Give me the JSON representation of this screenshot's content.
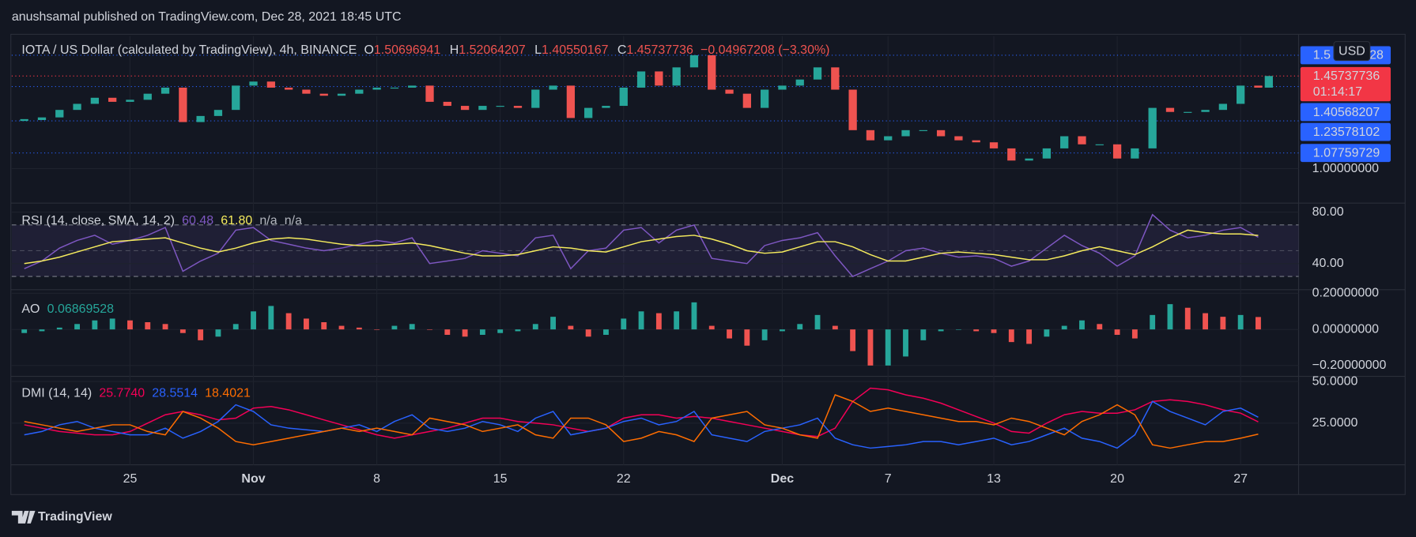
{
  "header": {
    "published": "anushsamal published on TradingView.com, Dec 28, 2021 18:45 UTC"
  },
  "footer": {
    "logo": "TradingView"
  },
  "chart_data": [
    {
      "type": "candlestick",
      "title": "IOTA / US Dollar (calculated by TradingView), 4h, BINANCE",
      "ohlc": [
        {
          "label": "O",
          "value": "1.50696941"
        },
        {
          "label": "H",
          "value": "1.52064207"
        },
        {
          "label": "L",
          "value": "1.40550167"
        },
        {
          "label": "C",
          "value": "1.45737736"
        }
      ],
      "change": "−0.04967208 (−3.30%)",
      "currency": "USD",
      "up_color": "#26a69a",
      "down_color": "#ef5350",
      "x": [
        -6,
        -5,
        -4,
        -3,
        -2,
        -1,
        0,
        1,
        2,
        3,
        4,
        5,
        6,
        7,
        8,
        9,
        10,
        11,
        12,
        13,
        14,
        15,
        16,
        17,
        18,
        19,
        20,
        21,
        22,
        23,
        24,
        25,
        26,
        27,
        28,
        29,
        30,
        31,
        32,
        33,
        34,
        35,
        36,
        37,
        38,
        39,
        40,
        41,
        42,
        43,
        44,
        45,
        46,
        47,
        48,
        49,
        50,
        51,
        52,
        53,
        54,
        55,
        56,
        57,
        58,
        59,
        60,
        61,
        62,
        63,
        64,
        64.6
      ],
      "values": [
        1.24,
        1.253,
        1.29,
        1.32,
        1.35,
        1.33,
        1.34,
        1.37,
        1.4,
        1.23,
        1.26,
        1.29,
        1.41,
        1.43,
        1.4,
        1.39,
        1.37,
        1.36,
        1.37,
        1.39,
        1.4,
        1.4,
        1.41,
        1.33,
        1.31,
        1.29,
        1.31,
        1.31,
        1.3,
        1.39,
        1.41,
        1.25,
        1.3,
        1.31,
        1.4,
        1.48,
        1.41,
        1.5,
        1.56,
        1.39,
        1.37,
        1.3,
        1.39,
        1.41,
        1.44,
        1.5,
        1.39,
        1.19,
        1.14,
        1.16,
        1.19,
        1.19,
        1.16,
        1.14,
        1.13,
        1.1,
        1.04,
        1.05,
        1.1,
        1.16,
        1.12,
        1.12,
        1.05,
        1.1,
        1.3,
        1.28,
        1.28,
        1.29,
        1.32,
        1.41,
        1.4,
        1.45737736
      ],
      "xlim": [
        -6.71,
        66.29
      ],
      "xticks": [
        {
          "value": 0,
          "label": "25"
        },
        {
          "value": 7,
          "label": "Nov"
        },
        {
          "value": 14,
          "label": "8"
        },
        {
          "value": 21,
          "label": "15"
        },
        {
          "value": 28,
          "label": "22"
        },
        {
          "value": 37,
          "label": "Dec"
        },
        {
          "value": 43,
          "label": "7"
        },
        {
          "value": 49,
          "label": "13"
        },
        {
          "value": 56,
          "label": "20"
        },
        {
          "value": 63,
          "label": "27"
        }
      ],
      "ylim": [
        0.83,
        1.65
      ],
      "yticks": [
        {
          "value": 1,
          "label": "1.00000000"
        }
      ],
      "price_levels": [
        {
          "value": 1.56,
          "label": "1.5",
          "label_end": "28",
          "color": "#2962ff"
        },
        {
          "value": 1.45737736,
          "countdown": "01:14:17",
          "color": "#f23645"
        },
        {
          "value": 1.40568207,
          "color": "#2962ff"
        },
        {
          "value": 1.23578102,
          "color": "#2962ff"
        },
        {
          "value": 1.07759729,
          "color": "#2962ff"
        }
      ]
    },
    {
      "type": "line",
      "title": "RSI (14, close, SMA, 14, 2)",
      "legend_values": [
        "60.48",
        "61.80",
        "n/a",
        "n/a"
      ],
      "x": [
        -6,
        -5,
        -4,
        -3,
        -2,
        -1,
        0,
        1,
        2,
        3,
        4,
        5,
        6,
        7,
        8,
        9,
        10,
        11,
        12,
        13,
        14,
        15,
        16,
        17,
        18,
        19,
        20,
        21,
        22,
        23,
        24,
        25,
        26,
        27,
        28,
        29,
        30,
        31,
        32,
        33,
        34,
        35,
        36,
        37,
        38,
        39,
        40,
        41,
        42,
        43,
        44,
        45,
        46,
        47,
        48,
        49,
        50,
        51,
        52,
        53,
        54,
        55,
        56,
        57,
        58,
        59,
        60,
        61,
        62,
        63,
        64
      ],
      "series": [
        {
          "color": "#7e57c2",
          "values": [
            36,
            42,
            52,
            58,
            62,
            55,
            58,
            62,
            68,
            34,
            42,
            48,
            66,
            68,
            58,
            55,
            52,
            50,
            52,
            55,
            58,
            56,
            60,
            40,
            42,
            44,
            50,
            48,
            46,
            60,
            62,
            36,
            50,
            52,
            66,
            68,
            56,
            66,
            70,
            44,
            42,
            40,
            54,
            58,
            60,
            64,
            46,
            30,
            36,
            42,
            50,
            52,
            48,
            45,
            46,
            44,
            38,
            42,
            52,
            62,
            54,
            48,
            38,
            46,
            78,
            66,
            60,
            62,
            66,
            68,
            60.48
          ]
        },
        {
          "color": "#f5eb5d",
          "values": [
            40,
            42,
            45,
            49,
            53,
            57,
            58,
            59,
            60,
            56,
            52,
            49,
            52,
            56,
            59,
            60,
            59,
            57,
            55,
            54,
            54,
            55,
            56,
            54,
            51,
            48,
            46,
            46,
            47,
            50,
            53,
            52,
            50,
            49,
            53,
            57,
            59,
            61,
            62,
            59,
            55,
            50,
            48,
            49,
            53,
            57,
            57,
            53,
            47,
            42,
            42,
            45,
            48,
            49,
            48,
            47,
            45,
            43,
            43,
            46,
            50,
            53,
            50,
            47,
            53,
            60,
            66,
            64,
            63,
            63,
            61.8
          ]
        }
      ],
      "ylim": [
        20.4,
        84.9
      ],
      "yticks": [
        {
          "value": 40,
          "label": "40.00"
        },
        {
          "value": 80,
          "label": "80.00"
        }
      ],
      "band": [
        30,
        70
      ],
      "midline": 50
    },
    {
      "type": "histogram",
      "title": "AO",
      "legend_values": [
        "0.06869528"
      ],
      "up_color": "#26a69a",
      "down_color": "#ef5350",
      "x": [
        -6,
        -5,
        -4,
        -3,
        -2,
        -1,
        0,
        1,
        2,
        3,
        4,
        5,
        6,
        7,
        8,
        9,
        10,
        11,
        12,
        13,
        14,
        15,
        16,
        17,
        18,
        19,
        20,
        21,
        22,
        23,
        24,
        25,
        26,
        27,
        28,
        29,
        30,
        31,
        32,
        33,
        34,
        35,
        36,
        37,
        38,
        39,
        40,
        41,
        42,
        43,
        44,
        45,
        46,
        47,
        48,
        49,
        50,
        51,
        52,
        53,
        54,
        55,
        56,
        57,
        58,
        59,
        60,
        61,
        62,
        63,
        64
      ],
      "values": [
        -0.02,
        -0.01,
        0.01,
        0.03,
        0.05,
        0.06,
        0.05,
        0.04,
        0.03,
        -0.02,
        -0.06,
        -0.04,
        0.03,
        0.1,
        0.13,
        0.09,
        0.06,
        0.04,
        0.02,
        0.01,
        0.0,
        0.02,
        0.03,
        0.0,
        -0.03,
        -0.04,
        -0.03,
        -0.02,
        -0.01,
        0.03,
        0.07,
        0.02,
        -0.04,
        -0.03,
        0.06,
        0.1,
        0.09,
        0.1,
        0.15,
        0.02,
        -0.05,
        -0.09,
        -0.06,
        -0.01,
        0.03,
        0.08,
        0.02,
        -0.12,
        -0.2,
        -0.2,
        -0.15,
        -0.06,
        -0.01,
        0.0,
        -0.01,
        -0.02,
        -0.07,
        -0.08,
        -0.04,
        0.02,
        0.05,
        0.03,
        -0.03,
        -0.05,
        0.08,
        0.14,
        0.12,
        0.09,
        0.07,
        0.08,
        0.06869528
      ],
      "ylim": [
        -0.25,
        0.21
      ],
      "yticks": [
        {
          "value": 0.2,
          "label": "0.20000000"
        },
        {
          "value": 0,
          "label": "0.00000000"
        },
        {
          "value": -0.2,
          "label": "−0.20000000"
        }
      ]
    },
    {
      "type": "line",
      "title": "DMI (14, 14)",
      "legend_values": [
        "25.7740",
        "28.5514",
        "18.4021"
      ],
      "x": [
        -6,
        -5,
        -4,
        -3,
        -2,
        -1,
        0,
        1,
        2,
        3,
        4,
        5,
        6,
        7,
        8,
        9,
        10,
        11,
        12,
        13,
        14,
        15,
        16,
        17,
        18,
        19,
        20,
        21,
        22,
        23,
        24,
        25,
        26,
        27,
        28,
        29,
        30,
        31,
        32,
        33,
        34,
        35,
        36,
        37,
        38,
        39,
        40,
        41,
        42,
        43,
        44,
        45,
        46,
        47,
        48,
        49,
        50,
        51,
        52,
        53,
        54,
        55,
        56,
        57,
        58,
        59,
        60,
        61,
        62,
        63,
        64
      ],
      "series": [
        {
          "color": "#f50057",
          "values": [
            24,
            22,
            20,
            19,
            18,
            18,
            20,
            25,
            30,
            32,
            30,
            27,
            28,
            34,
            35,
            33,
            30,
            27,
            24,
            21,
            18,
            16,
            18,
            20,
            22,
            25,
            28,
            28,
            26,
            25,
            24,
            22,
            20,
            22,
            28,
            30,
            30,
            28,
            29,
            28,
            26,
            24,
            22,
            20,
            18,
            17,
            22,
            38,
            46,
            45,
            42,
            40,
            37,
            33,
            29,
            25,
            20,
            19,
            25,
            30,
            32,
            31,
            31,
            33,
            38,
            39,
            38,
            36,
            33,
            31,
            25.774
          ]
        },
        {
          "color": "#2962ff",
          "values": [
            18,
            20,
            24,
            26,
            22,
            20,
            18,
            18,
            22,
            16,
            20,
            26,
            36,
            32,
            24,
            22,
            21,
            20,
            22,
            24,
            20,
            26,
            30,
            22,
            20,
            22,
            26,
            24,
            20,
            28,
            32,
            18,
            20,
            22,
            26,
            28,
            24,
            26,
            32,
            18,
            16,
            14,
            20,
            22,
            24,
            28,
            16,
            12,
            10,
            11,
            12,
            14,
            14,
            12,
            14,
            16,
            12,
            14,
            18,
            22,
            16,
            14,
            10,
            18,
            38,
            32,
            28,
            24,
            32,
            34,
            28.5514
          ]
        },
        {
          "color": "#ff6d00",
          "values": [
            26,
            24,
            22,
            20,
            22,
            24,
            24,
            20,
            18,
            32,
            28,
            22,
            14,
            12,
            14,
            16,
            18,
            20,
            22,
            20,
            22,
            20,
            18,
            28,
            26,
            24,
            20,
            22,
            24,
            18,
            16,
            28,
            28,
            24,
            14,
            16,
            20,
            18,
            14,
            28,
            30,
            32,
            24,
            22,
            18,
            16,
            42,
            38,
            32,
            34,
            32,
            30,
            28,
            26,
            26,
            24,
            28,
            26,
            22,
            18,
            26,
            30,
            36,
            30,
            12,
            10,
            12,
            14,
            14,
            16,
            18.4021
          ]
        }
      ],
      "ylim": [
        0,
        52
      ],
      "yticks": [
        {
          "value": 25,
          "label": "25.0000"
        },
        {
          "value": 50,
          "label": "50.0000"
        }
      ]
    }
  ]
}
